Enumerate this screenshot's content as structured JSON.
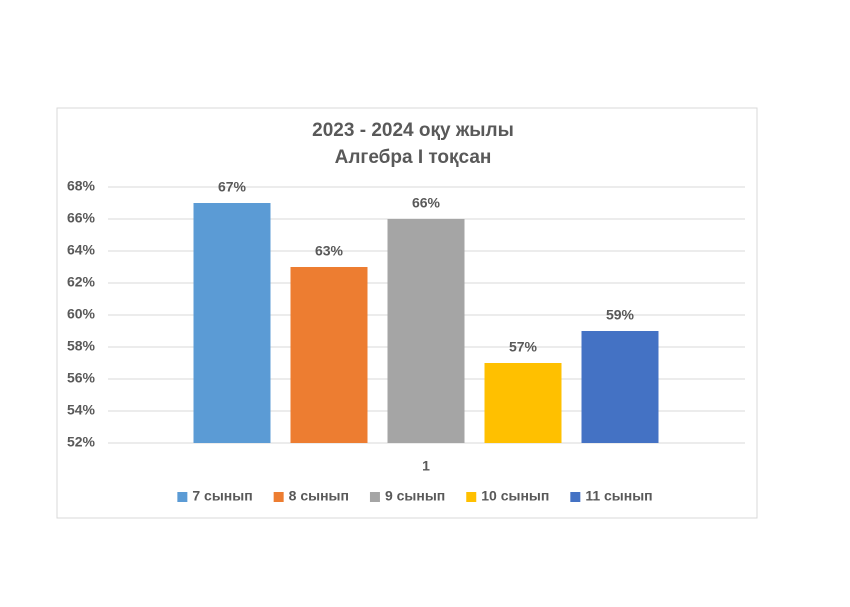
{
  "chart_data": {
    "type": "bar",
    "title": "2023 - 2024 оқу жылы",
    "subtitle": "Алгебра I тоқсан",
    "categories": [
      "1"
    ],
    "series": [
      {
        "name": "7 сынып",
        "color": "#5b9bd5",
        "values": [
          67
        ],
        "value_labels": [
          "67%"
        ]
      },
      {
        "name": "8 сынып",
        "color": "#ed7d31",
        "values": [
          63
        ],
        "value_labels": [
          "63%"
        ]
      },
      {
        "name": "9 сынып",
        "color": "#a5a5a5",
        "values": [
          66
        ],
        "value_labels": [
          "66%"
        ]
      },
      {
        "name": "10 сынып",
        "color": "#ffc000",
        "values": [
          57
        ],
        "value_labels": [
          "57%"
        ]
      },
      {
        "name": "11 сынып",
        "color": "#4472c4",
        "values": [
          59
        ],
        "value_labels": [
          "59%"
        ]
      }
    ],
    "ylim": [
      52,
      68
    ],
    "yticks": [
      {
        "value": 52,
        "label": "52%"
      },
      {
        "value": 54,
        "label": "54%"
      },
      {
        "value": 56,
        "label": "56%"
      },
      {
        "value": 58,
        "label": "58%"
      },
      {
        "value": 60,
        "label": "60%"
      },
      {
        "value": 62,
        "label": "62%"
      },
      {
        "value": 64,
        "label": "64%"
      },
      {
        "value": 66,
        "label": "66%"
      },
      {
        "value": 68,
        "label": "68%"
      }
    ],
    "grid": true,
    "legend": "bottom"
  }
}
